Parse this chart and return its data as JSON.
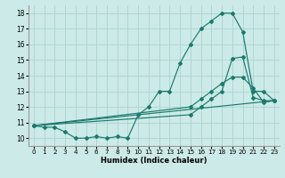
{
  "xlabel": "Humidex (Indice chaleur)",
  "xlim": [
    -0.5,
    23.5
  ],
  "ylim": [
    9.5,
    18.5
  ],
  "yticks": [
    10,
    11,
    12,
    13,
    14,
    15,
    16,
    17,
    18
  ],
  "xticks": [
    0,
    1,
    2,
    3,
    4,
    5,
    6,
    7,
    8,
    9,
    10,
    11,
    12,
    13,
    14,
    15,
    16,
    17,
    18,
    19,
    20,
    21,
    22,
    23
  ],
  "line_color": "#1a7a6e",
  "bg_color": "#cceae7",
  "grid_color": "#aad4d0",
  "line1_x": [
    0,
    1,
    2,
    3,
    4,
    5,
    6,
    7,
    8,
    9,
    10,
    11,
    12,
    13,
    14,
    15,
    16,
    17,
    18,
    19,
    20,
    21,
    22,
    23
  ],
  "line1_y": [
    10.8,
    10.7,
    10.7,
    10.4,
    10.0,
    10.0,
    10.1,
    10.0,
    10.1,
    10.0,
    11.5,
    12.0,
    13.0,
    13.0,
    14.8,
    16.0,
    17.0,
    17.5,
    18.0,
    18.0,
    16.8,
    13.0,
    13.0,
    12.4
  ],
  "line2_x": [
    0,
    23
  ],
  "line2_y": [
    10.8,
    12.4
  ],
  "line3_x": [
    0,
    15,
    16,
    17,
    18,
    19,
    20,
    21,
    22,
    23
  ],
  "line3_y": [
    10.8,
    12.0,
    12.5,
    13.0,
    13.5,
    13.9,
    13.9,
    13.2,
    12.3,
    12.4
  ],
  "line4_x": [
    0,
    15,
    16,
    17,
    18,
    19,
    20,
    21,
    22,
    23
  ],
  "line4_y": [
    10.8,
    11.5,
    12.0,
    12.5,
    13.0,
    15.1,
    15.2,
    12.6,
    12.4,
    12.4
  ]
}
